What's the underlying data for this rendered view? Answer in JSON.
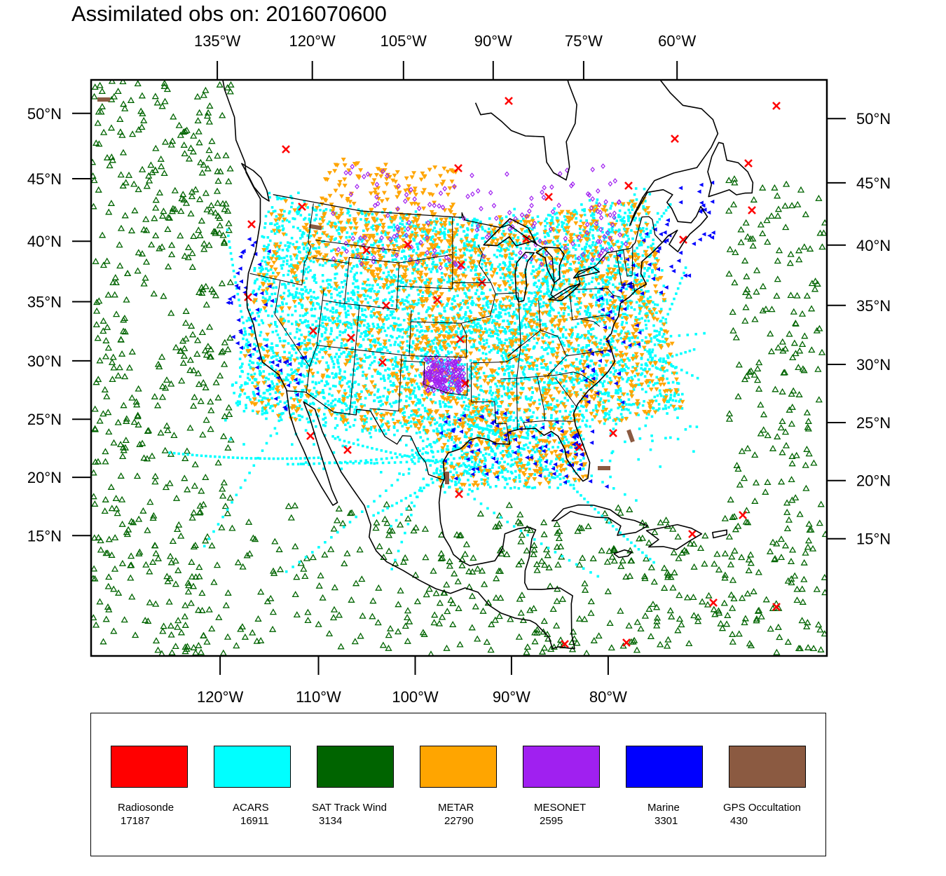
{
  "title": "Assimilated obs on: 2016070600",
  "map": {
    "top_lon_labels": [
      {
        "lon": -135,
        "label": "135°W"
      },
      {
        "lon": -120,
        "label": "120°W"
      },
      {
        "lon": -105,
        "label": "105°W"
      },
      {
        "lon": -90,
        "label": "90°W"
      },
      {
        "lon": -75,
        "label": "75°W"
      },
      {
        "lon": -60,
        "label": "60°W"
      }
    ],
    "bottom_lon_labels": [
      {
        "lon": -120,
        "label": "120°W"
      },
      {
        "lon": -110,
        "label": "110°W"
      },
      {
        "lon": -100,
        "label": "100°W"
      },
      {
        "lon": -90,
        "label": "90°W"
      },
      {
        "lon": -80,
        "label": "80°W"
      }
    ],
    "lat_labels": [
      {
        "lat": 50,
        "label": "50°N"
      },
      {
        "lat": 45,
        "label": "45°N"
      },
      {
        "lat": 40,
        "label": "40°N"
      },
      {
        "lat": 35,
        "label": "35°N"
      },
      {
        "lat": 30,
        "label": "30°N"
      },
      {
        "lat": 25,
        "label": "25°N"
      },
      {
        "lat": 20,
        "label": "20°N"
      },
      {
        "lat": 15,
        "label": "15°N"
      }
    ],
    "colors": {
      "coastline": "#000000",
      "background": "#ffffff"
    }
  },
  "legend": [
    {
      "name": "Radiosonde",
      "count": "17187",
      "color": "#ff0000",
      "marker": "x-mark"
    },
    {
      "name": "ACARS",
      "count": "16911",
      "color": "#00ffff",
      "marker": "square-dot"
    },
    {
      "name": "SAT Track Wind",
      "count": "3134",
      "color": "#006400",
      "marker": "triangle-up"
    },
    {
      "name": "METAR",
      "count": "22790",
      "color": "#ffa500",
      "marker": "triangle-down"
    },
    {
      "name": "MESONET",
      "count": "2595",
      "color": "#a020f0",
      "marker": "diamond"
    },
    {
      "name": "Marine",
      "count": "3301",
      "color": "#0000ff",
      "marker": "triangle-left"
    },
    {
      "name": "GPS Occultation",
      "count": "430",
      "color": "#8b5a41",
      "marker": "bar"
    }
  ]
}
